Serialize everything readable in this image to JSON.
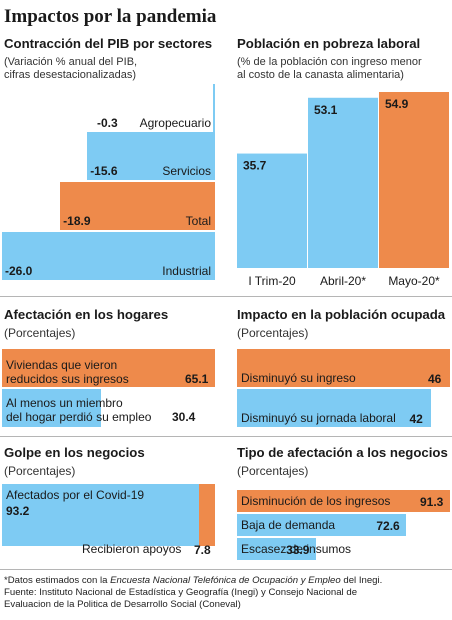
{
  "title": "Impactos por la pandemia",
  "colors": {
    "blue": "#7ecbf3",
    "orange": "#ee8a4b",
    "text": "#1a1a1a",
    "rule": "#b5b5b5"
  },
  "panels": {
    "pib": {
      "title": "Contracción del PIB por sectores",
      "subtitle_1": "(Variación % anual del PIB,",
      "subtitle_2": "cifras desestacionalizadas)"
    },
    "pobreza": {
      "title": "Población en pobreza laboral",
      "subtitle_1": "(% de la población con ingreso menor",
      "subtitle_2": "al costo de la canasta alimentaria)"
    },
    "hogares": {
      "title": "Afectación en los hogares",
      "subtitle": "(Porcentajes)"
    },
    "ocupada": {
      "title": "Impacto en la población ocupada",
      "subtitle": "(Porcentajes)"
    },
    "negocios": {
      "title": "Golpe en los negocios",
      "subtitle": "(Porcentajes)"
    },
    "tipo": {
      "title": "Tipo de afectación a los negocios",
      "subtitle": "(Porcentajes)"
    }
  },
  "footnote": {
    "line1_a": "*Datos estimados con la ",
    "line1_italic": "Encuesta Nacional Telefónica de Ocupación y Empleo",
    "line1_b": " del Inegi.",
    "line2": "Fuente: Instituto Nacional de Estadística y Geografía (Inegi) y Consejo Nacional de",
    "line3": "Evaluacion de la Politica de Desarrollo Social (Coneval)"
  },
  "chart_data": [
    {
      "type": "bar",
      "orientation": "horizontal",
      "categories": [
        "Agropecuario",
        "Servicios",
        "Total",
        "Industrial"
      ],
      "values": [
        -0.3,
        -15.6,
        -18.9,
        -26.0
      ],
      "labels": [
        "-0.3",
        "-15.6",
        "-18.9",
        "-26.0"
      ],
      "highlight": "Total",
      "xlim": [
        -26,
        0
      ]
    },
    {
      "type": "bar",
      "categories": [
        "I Trim-20",
        "Abril-20*",
        "Mayo-20*"
      ],
      "values": [
        35.7,
        53.1,
        54.9
      ],
      "labels": [
        "35.7",
        "53.1",
        "54.9"
      ],
      "highlight": "Mayo-20*",
      "ylim": [
        0,
        54.9
      ]
    },
    {
      "type": "bar",
      "orientation": "horizontal",
      "categories": [
        "Viviendas que vieron reducidos sus ingresos",
        "Al menos un miembro del hogar perdió su empleo"
      ],
      "category_lines": [
        [
          "Viviendas que vieron",
          "reducidos sus ingresos"
        ],
        [
          "Al menos un miembro",
          "del hogar perdió su empleo"
        ]
      ],
      "values": [
        65.1,
        30.4
      ],
      "labels": [
        "65.1",
        "30.4"
      ],
      "highlight": "Viviendas que vieron reducidos sus ingresos",
      "xlim": [
        0,
        65.1
      ]
    },
    {
      "type": "bar",
      "orientation": "horizontal",
      "categories": [
        "Disminuyó su ingreso",
        "Disminuyó su jornada laboral"
      ],
      "values": [
        46,
        42
      ],
      "labels": [
        "46",
        "42"
      ],
      "highlight": "Disminuyó su ingreso",
      "xlim": [
        0,
        46
      ]
    },
    {
      "type": "bar",
      "categories": [
        "Afectados por el Covid-19",
        "Recibieron apoyos"
      ],
      "values": [
        93.2,
        7.8
      ],
      "labels": [
        "93.2",
        "7.8"
      ],
      "highlight": "Recibieron apoyos",
      "ylim": [
        0,
        93.2
      ]
    },
    {
      "type": "bar",
      "orientation": "horizontal",
      "categories": [
        "Disminución de los ingresos",
        "Baja de demanda",
        "Escasez de insumos"
      ],
      "values": [
        91.3,
        72.6,
        33.9
      ],
      "labels": [
        "91.3",
        "72.6",
        "33.9"
      ],
      "highlight": "Disminución de los ingresos",
      "xlim": [
        0,
        91.3
      ]
    }
  ]
}
